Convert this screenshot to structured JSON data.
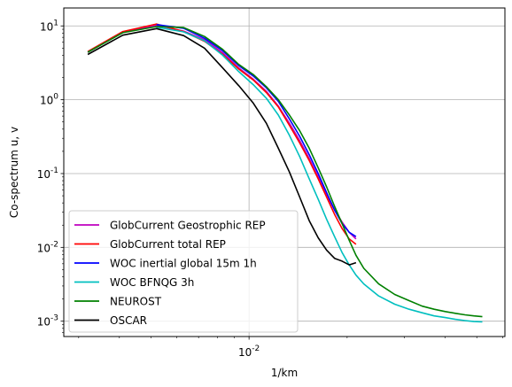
{
  "chart_data": {
    "type": "line",
    "xlabel": "1/km",
    "ylabel": "Co-spectrum u, v",
    "xscale": "log",
    "yscale": "log",
    "xlim": [
      0.0027,
      0.061
    ],
    "ylim": [
      0.00062,
      17.5
    ],
    "grid": true,
    "legend_position": "lower-left",
    "x_ticks": [
      {
        "value": 0.01,
        "label": "10^-2"
      }
    ],
    "y_ticks": [
      {
        "value": 0.001,
        "label": "10^-3"
      },
      {
        "value": 0.01,
        "label": "10^-2"
      },
      {
        "value": 0.1,
        "label": "10^-1"
      },
      {
        "value": 1,
        "label": "10^0"
      },
      {
        "value": 10,
        "label": "10^1"
      }
    ],
    "series": [
      {
        "name": "GlobCurrent Geostrophic REP",
        "color": "#bf00bf",
        "x": [
          0.0032,
          0.0041,
          0.0052,
          0.0063,
          0.0073,
          0.0083,
          0.0093,
          0.0103,
          0.0113,
          0.0123,
          0.0133,
          0.0143,
          0.0153,
          0.0163,
          0.0173,
          0.0183,
          0.0193,
          0.0203,
          0.0213
        ],
        "y": [
          4.4,
          8.2,
          10.2,
          8.5,
          6.5,
          4.3,
          2.7,
          1.9,
          1.3,
          0.82,
          0.48,
          0.28,
          0.16,
          0.09,
          0.052,
          0.032,
          0.022,
          0.016,
          0.013
        ]
      },
      {
        "name": "GlobCurrent total REP",
        "color": "#ff0000",
        "x": [
          0.0032,
          0.0041,
          0.0052,
          0.0063,
          0.0073,
          0.0083,
          0.0093,
          0.0103,
          0.0113,
          0.0123,
          0.0133,
          0.0143,
          0.0153,
          0.0163,
          0.0173,
          0.0183,
          0.0193,
          0.0203,
          0.0213
        ],
        "y": [
          4.5,
          8.4,
          10.6,
          8.4,
          6.2,
          4.1,
          2.6,
          1.85,
          1.25,
          0.8,
          0.45,
          0.26,
          0.15,
          0.085,
          0.048,
          0.028,
          0.018,
          0.013,
          0.011
        ]
      },
      {
        "name": "WOC inertial global 15m 1h",
        "color": "#0000ff",
        "x": [
          0.0052,
          0.0063,
          0.0073,
          0.0083,
          0.0093,
          0.0103,
          0.0113,
          0.0123,
          0.0133,
          0.0143,
          0.0153,
          0.0163,
          0.0173,
          0.0183,
          0.0193,
          0.0203,
          0.0213
        ],
        "y": [
          10.4,
          9.3,
          6.8,
          4.6,
          2.9,
          2.1,
          1.45,
          0.95,
          0.55,
          0.32,
          0.18,
          0.1,
          0.055,
          0.032,
          0.021,
          0.016,
          0.014
        ]
      },
      {
        "name": "WOC BFNQG 3h",
        "color": "#00bfbf",
        "x": [
          0.0052,
          0.0063,
          0.0073,
          0.0083,
          0.0093,
          0.0103,
          0.0113,
          0.0123,
          0.0133,
          0.0143,
          0.0153,
          0.0163,
          0.0173,
          0.0183,
          0.0193,
          0.0203,
          0.0213,
          0.0225,
          0.025,
          0.028,
          0.031,
          0.034,
          0.037,
          0.04,
          0.043,
          0.046,
          0.049,
          0.052
        ],
        "y": [
          9.6,
          8.3,
          6.3,
          4.0,
          2.4,
          1.6,
          1.05,
          0.62,
          0.33,
          0.17,
          0.085,
          0.045,
          0.024,
          0.014,
          0.0085,
          0.0058,
          0.0042,
          0.0032,
          0.0022,
          0.0017,
          0.00145,
          0.0013,
          0.00118,
          0.00112,
          0.00106,
          0.00102,
          0.00099,
          0.00098
        ]
      },
      {
        "name": "NEUROST",
        "color": "#008000",
        "x": [
          0.0032,
          0.0041,
          0.0052,
          0.0063,
          0.0073,
          0.0083,
          0.0093,
          0.0103,
          0.0113,
          0.0123,
          0.0133,
          0.0143,
          0.0153,
          0.0163,
          0.0173,
          0.0183,
          0.0193,
          0.0203,
          0.0213,
          0.0225,
          0.025,
          0.028,
          0.031,
          0.034,
          0.037,
          0.04,
          0.043,
          0.046,
          0.049,
          0.052
        ],
        "y": [
          4.4,
          8.1,
          9.8,
          9.5,
          7.2,
          4.8,
          3.0,
          2.2,
          1.5,
          1.0,
          0.62,
          0.38,
          0.22,
          0.12,
          0.066,
          0.036,
          0.021,
          0.0125,
          0.0078,
          0.0052,
          0.0032,
          0.0023,
          0.0019,
          0.0016,
          0.00145,
          0.00135,
          0.00128,
          0.00122,
          0.00118,
          0.00115
        ]
      },
      {
        "name": "OSCAR",
        "color": "#000000",
        "x": [
          0.0032,
          0.0041,
          0.0052,
          0.0063,
          0.0073,
          0.0083,
          0.0093,
          0.0103,
          0.0113,
          0.0123,
          0.0133,
          0.0143,
          0.0153,
          0.0163,
          0.0173,
          0.0183,
          0.0193,
          0.0203,
          0.0213
        ],
        "y": [
          4.1,
          7.5,
          9.2,
          7.4,
          5.0,
          2.7,
          1.55,
          0.9,
          0.48,
          0.22,
          0.105,
          0.048,
          0.023,
          0.0135,
          0.0092,
          0.0071,
          0.0065,
          0.0058,
          0.0062
        ]
      }
    ]
  }
}
